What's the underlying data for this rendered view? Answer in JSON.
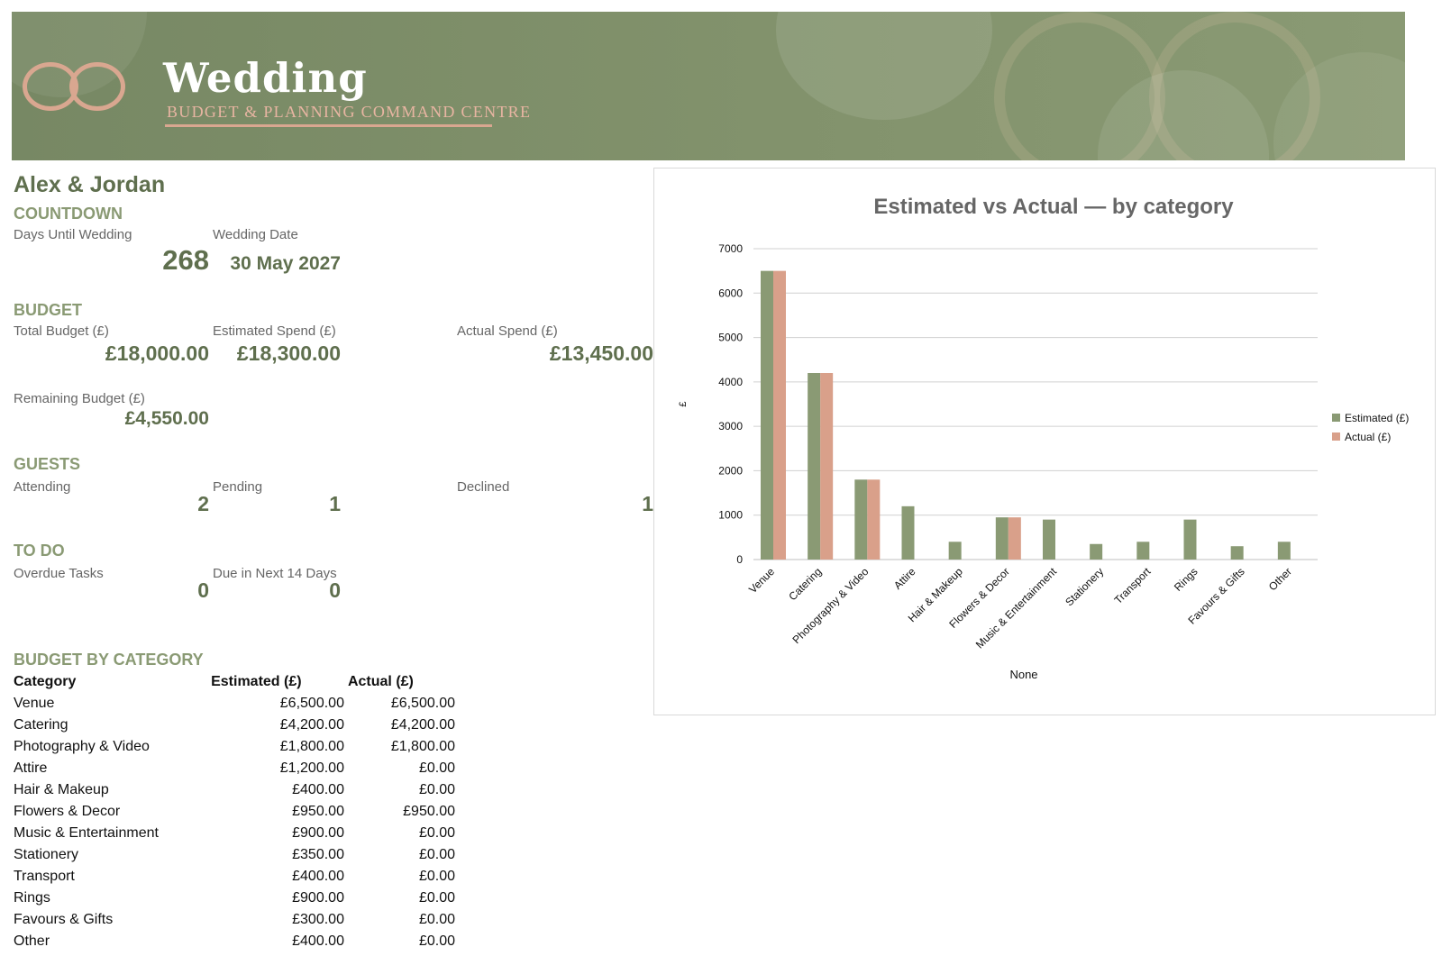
{
  "banner": {
    "title": "Wedding",
    "subtitle": "BUDGET & PLANNING COMMAND CENTRE"
  },
  "couple": "Alex & Jordan",
  "countdown": {
    "heading": "COUNTDOWN",
    "days_label": "Days Until Wedding",
    "days_value": "268",
    "date_label": "Wedding Date",
    "date_value": "30 May 2027"
  },
  "budget": {
    "heading": "BUDGET",
    "total_label": "Total Budget (£)",
    "total_value": "£18,000.00",
    "estimated_label": "Estimated Spend (£)",
    "estimated_value": "£18,300.00",
    "actual_label": "Actual Spend (£)",
    "actual_value": "£13,450.00",
    "remaining_label": "Remaining Budget (£)",
    "remaining_value": "£4,550.00"
  },
  "guests": {
    "heading": "GUESTS",
    "attending_label": "Attending",
    "attending_value": "2",
    "pending_label": "Pending",
    "pending_value": "1",
    "declined_label": "Declined",
    "declined_value": "1"
  },
  "todo": {
    "heading": "TO DO",
    "overdue_label": "Overdue Tasks",
    "overdue_value": "0",
    "due_label": "Due in Next 14 Days",
    "due_value": "0"
  },
  "table": {
    "heading": "BUDGET BY CATEGORY",
    "columns": [
      "Category",
      "Estimated (£)",
      "Actual (£)"
    ],
    "rows": [
      [
        "Venue",
        "£6,500.00",
        "£6,500.00"
      ],
      [
        "Catering",
        "£4,200.00",
        "£4,200.00"
      ],
      [
        "Photography & Video",
        "£1,800.00",
        "£1,800.00"
      ],
      [
        "Attire",
        "£1,200.00",
        "£0.00"
      ],
      [
        "Hair & Makeup",
        "£400.00",
        "£0.00"
      ],
      [
        "Flowers & Decor",
        "£950.00",
        "£950.00"
      ],
      [
        "Music & Entertainment",
        "£900.00",
        "£0.00"
      ],
      [
        "Stationery",
        "£350.00",
        "£0.00"
      ],
      [
        "Transport",
        "£400.00",
        "£0.00"
      ],
      [
        "Rings",
        "£900.00",
        "£0.00"
      ],
      [
        "Favours & Gifts",
        "£300.00",
        "£0.00"
      ],
      [
        "Other",
        "£400.00",
        "£0.00"
      ]
    ]
  },
  "colors": {
    "accent": "#5f6f4e",
    "section": "#8a9a74",
    "estimated_bar": "#8a9a74",
    "actual_bar": "#d9a08a"
  },
  "chart_data": {
    "type": "bar",
    "title": "Estimated vs Actual — by category",
    "xlabel": "None",
    "ylabel": "£",
    "ylim": [
      0,
      7000
    ],
    "yticks": [
      0,
      1000,
      2000,
      3000,
      4000,
      5000,
      6000,
      7000
    ],
    "grid": true,
    "legend_position": "right",
    "categories": [
      "Venue",
      "Catering",
      "Photography & Video",
      "Attire",
      "Hair & Makeup",
      "Flowers & Decor",
      "Music & Entertainment",
      "Stationery",
      "Transport",
      "Rings",
      "Favours & Gifts",
      "Other"
    ],
    "series": [
      {
        "name": "Estimated (£)",
        "values": [
          6500,
          4200,
          1800,
          1200,
          400,
          950,
          900,
          350,
          400,
          900,
          300,
          400
        ]
      },
      {
        "name": "Actual (£)",
        "values": [
          6500,
          4200,
          1800,
          0,
          0,
          950,
          0,
          0,
          0,
          0,
          0,
          0
        ]
      }
    ]
  }
}
